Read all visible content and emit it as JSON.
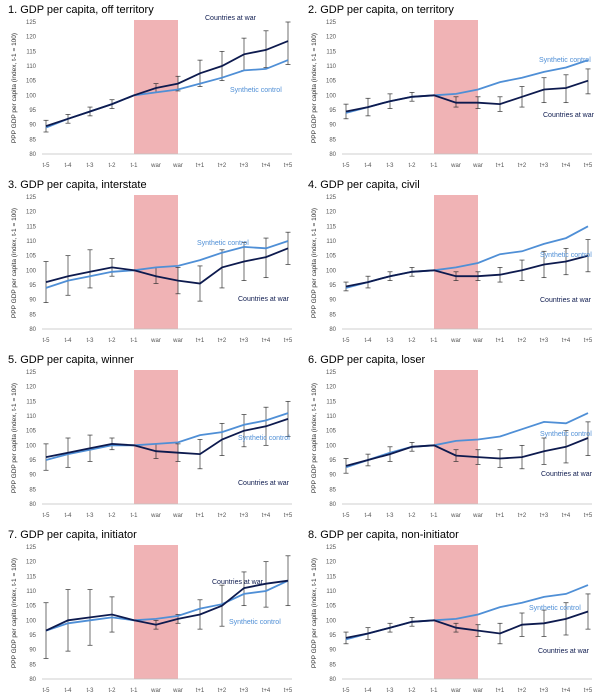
{
  "colors": {
    "war": "#0d1a4e",
    "synthetic": "#4f8fd6",
    "band": "#f0b3b5",
    "axis": "#bfbfbf"
  },
  "chart_data": [
    {
      "type": "line",
      "title": "1. GDP per capita, off territory",
      "ylabel": "PPP GDP per capita (index, t-1 = 100)",
      "categories": [
        "t-5",
        "t-4",
        "t-3",
        "t-2",
        "t-1",
        "war",
        "war",
        "t+1",
        "t+2",
        "t+3",
        "t+4",
        "t+5"
      ],
      "yticks": [
        80,
        85,
        90,
        95,
        100,
        105,
        110,
        115,
        120,
        125
      ],
      "ylim": [
        80,
        125
      ],
      "shaded": [
        "t-1",
        "war"
      ],
      "series": [
        {
          "name": "Countries at war",
          "values": [
            89.5,
            92,
            94.5,
            97,
            100,
            102.5,
            104,
            107.5,
            110,
            114,
            115.5,
            118.5
          ],
          "err_low": [
            87.5,
            90.5,
            93,
            95.5,
            100,
            101,
            101.5,
            103,
            105,
            108.5,
            109.5,
            110.5
          ],
          "err_high": [
            91.5,
            93.5,
            96,
            98.5,
            100,
            104,
            106.5,
            112,
            115,
            119.5,
            122,
            125
          ]
        },
        {
          "name": "Synthetic control",
          "values": [
            89,
            92,
            94.5,
            97,
            100,
            101,
            102,
            104,
            106,
            108.5,
            109,
            112
          ]
        }
      ],
      "labels": [
        {
          "series": "Countries at war",
          "text": "Countries at war"
        },
        {
          "series": "Synthetic control",
          "text": "Synthetic control"
        }
      ]
    },
    {
      "type": "line",
      "title": "2. GDP per capita, on territory",
      "ylabel": "PPP GDP per capita (index, t-1 = 100)",
      "categories": [
        "t-5",
        "t-4",
        "t-3",
        "t-2",
        "t-1",
        "war",
        "war",
        "t+1",
        "t+2",
        "t+3",
        "t+4",
        "t+5"
      ],
      "yticks": [
        80,
        85,
        90,
        95,
        100,
        105,
        110,
        115,
        120,
        125
      ],
      "ylim": [
        80,
        125
      ],
      "shaded": [
        "t-1",
        "war"
      ],
      "series": [
        {
          "name": "Countries at war",
          "values": [
            94.5,
            96,
            98,
            99.5,
            100,
            97.5,
            97.5,
            97,
            99.5,
            102,
            102.5,
            105
          ],
          "err_low": [
            92,
            93,
            95.5,
            98,
            100,
            96,
            95.5,
            94.5,
            96,
            97.5,
            97.5,
            100.5
          ],
          "err_high": [
            97,
            99,
            100.5,
            101,
            100,
            99.5,
            99.5,
            99.5,
            103,
            106,
            107,
            109
          ]
        },
        {
          "name": "Synthetic control",
          "values": [
            94,
            96,
            98,
            99.5,
            100,
            100.5,
            102,
            104.5,
            106,
            108,
            109.5,
            112
          ]
        }
      ],
      "labels": [
        {
          "series": "Countries at war",
          "text": "Countries at war"
        },
        {
          "series": "Synthetic control",
          "text": "Synthetic control"
        }
      ]
    },
    {
      "type": "line",
      "title": "3. GDP per capita, interstate",
      "ylabel": "PPP GDP per capita (index, t-1 = 100)",
      "categories": [
        "t-5",
        "t-4",
        "t-3",
        "t-2",
        "t-1",
        "war",
        "war",
        "t+1",
        "t+2",
        "t+3",
        "t+4",
        "t+5"
      ],
      "yticks": [
        80,
        85,
        90,
        95,
        100,
        105,
        110,
        115,
        120,
        125
      ],
      "ylim": [
        80,
        125
      ],
      "shaded": [
        "t-1",
        "war"
      ],
      "series": [
        {
          "name": "Countries at war",
          "values": [
            96,
            98,
            99.5,
            101,
            100,
            98,
            96.5,
            95.5,
            101,
            103,
            104.5,
            107.5
          ],
          "err_low": [
            89,
            91.5,
            94,
            98,
            100,
            95.5,
            92,
            89.5,
            94,
            96.5,
            97.5,
            102
          ],
          "err_high": [
            103,
            105,
            107,
            104,
            100,
            101,
            101,
            101.5,
            107,
            109.5,
            111,
            113
          ]
        },
        {
          "name": "Synthetic control",
          "values": [
            94,
            96.5,
            98,
            99.5,
            100,
            101,
            101.5,
            103.5,
            106,
            108,
            107.5,
            110
          ]
        }
      ],
      "labels": [
        {
          "series": "Countries at war",
          "text": "Countries at war"
        },
        {
          "series": "Synthetic control",
          "text": "Synthetic control"
        }
      ]
    },
    {
      "type": "line",
      "title": "4. GDP per capita, civil",
      "ylabel": "PPP GDP per capita (index, t-1 = 100)",
      "categories": [
        "t-5",
        "t-4",
        "t-3",
        "t-2",
        "t-1",
        "war",
        "war",
        "t+1",
        "t+2",
        "t+3",
        "t+4",
        "t+5"
      ],
      "yticks": [
        80,
        85,
        90,
        95,
        100,
        105,
        110,
        115,
        120,
        125
      ],
      "ylim": [
        80,
        125
      ],
      "shaded": [
        "t-1",
        "war"
      ],
      "series": [
        {
          "name": "Countries at war",
          "values": [
            94.5,
            96,
            98,
            99.5,
            100,
            98,
            98,
            98.5,
            100,
            102,
            103,
            105
          ],
          "err_low": [
            93,
            94,
            96.5,
            98,
            100,
            96.5,
            96.5,
            96,
            96.5,
            97.5,
            98.5,
            99.5
          ],
          "err_high": [
            96,
            98,
            99.5,
            101,
            100,
            99.5,
            99.5,
            101,
            103.5,
            106.5,
            107.5,
            110.5
          ]
        },
        {
          "name": "Synthetic control",
          "values": [
            94,
            96,
            98,
            99.5,
            100,
            101,
            102.5,
            105.5,
            106.5,
            109,
            111,
            115
          ]
        }
      ],
      "labels": [
        {
          "series": "Countries at war",
          "text": "Countries at war"
        },
        {
          "series": "Synthetic control",
          "text": "Synthetic control"
        }
      ]
    },
    {
      "type": "line",
      "title": "5. GDP per capita, winner",
      "ylabel": "PPP GDP per capita (index, t-1 = 100)",
      "categories": [
        "t-5",
        "t-4",
        "t-3",
        "t-2",
        "t-1",
        "war",
        "war",
        "t+1",
        "t+2",
        "t+3",
        "t+4",
        "t+5"
      ],
      "yticks": [
        80,
        85,
        90,
        95,
        100,
        105,
        110,
        115,
        120,
        125
      ],
      "ylim": [
        80,
        125
      ],
      "shaded": [
        "t-1",
        "war"
      ],
      "series": [
        {
          "name": "Countries at war",
          "values": [
            96,
            97.5,
            99,
            100.5,
            100,
            98,
            97.5,
            97,
            102,
            105,
            106.5,
            109
          ],
          "err_low": [
            91.5,
            92.5,
            94.5,
            98.5,
            100,
            95.5,
            94.5,
            92,
            96.5,
            99.5,
            100,
            103
          ],
          "err_high": [
            100.5,
            102.5,
            103.5,
            102.5,
            100,
            100.5,
            100.5,
            102,
            107.5,
            110.5,
            113,
            115
          ]
        },
        {
          "name": "Synthetic control",
          "values": [
            95,
            97,
            98.5,
            100,
            100,
            100.5,
            101,
            103.5,
            104.5,
            107,
            108.5,
            111
          ]
        }
      ],
      "labels": [
        {
          "series": "Countries at war",
          "text": "Countries at war"
        },
        {
          "series": "Synthetic control",
          "text": "Synthetic control"
        }
      ]
    },
    {
      "type": "line",
      "title": "6. GDP per capita, loser",
      "ylabel": "PPP GDP per capita (index, t-1 = 100)",
      "categories": [
        "t-5",
        "t-4",
        "t-3",
        "t-2",
        "t-1",
        "war",
        "war",
        "t+1",
        "t+2",
        "t+3",
        "t+4",
        "t+5"
      ],
      "yticks": [
        80,
        85,
        90,
        95,
        100,
        105,
        110,
        115,
        120,
        125
      ],
      "ylim": [
        80,
        125
      ],
      "shaded": [
        "t-1",
        "war"
      ],
      "series": [
        {
          "name": "Countries at war",
          "values": [
            93,
            95,
            97,
            99.5,
            100,
            96.5,
            96,
            95.5,
            96,
            98,
            99.5,
            102.5
          ],
          "err_low": [
            90.5,
            93,
            94.5,
            98,
            100,
            94.5,
            93.5,
            92.5,
            92,
            93.5,
            94,
            96.5
          ],
          "err_high": [
            95.5,
            97,
            99.5,
            101,
            100,
            98.5,
            98.5,
            98.5,
            100,
            102.5,
            105,
            108
          ]
        },
        {
          "name": "Synthetic control",
          "values": [
            92.5,
            95,
            97.5,
            99.5,
            100,
            101.5,
            102,
            103,
            105.5,
            108,
            107.5,
            111
          ]
        }
      ],
      "labels": [
        {
          "series": "Countries at war",
          "text": "Countries at war"
        },
        {
          "series": "Synthetic control",
          "text": "Synthetic control"
        }
      ]
    },
    {
      "type": "line",
      "title": "7. GDP per capita, initiator",
      "ylabel": "PPP GDP per capita (index, t-1 = 100)",
      "categories": [
        "t-5",
        "t-4",
        "t-3",
        "t-2",
        "t-1",
        "war",
        "war",
        "t+1",
        "t+2",
        "t+3",
        "t+4",
        "t+5"
      ],
      "yticks": [
        80,
        85,
        90,
        95,
        100,
        105,
        110,
        115,
        120,
        125
      ],
      "ylim": [
        80,
        125
      ],
      "shaded": [
        "t-1",
        "war"
      ],
      "series": [
        {
          "name": "Countries at war",
          "values": [
            96.5,
            100,
            101,
            102,
            100,
            98.5,
            100.5,
            102,
            105,
            111,
            112.5,
            113.5
          ],
          "err_low": [
            87,
            89.5,
            91.5,
            96,
            100,
            97,
            99,
            97,
            98,
            105,
            104.5,
            105
          ],
          "err_high": [
            106,
            110.5,
            110.5,
            108,
            100,
            100,
            102,
            107,
            112,
            116.5,
            120,
            122
          ]
        },
        {
          "name": "Synthetic control",
          "values": [
            96.5,
            99,
            100,
            101,
            100,
            100.5,
            101.5,
            104,
            105.5,
            109,
            110,
            113.5
          ]
        }
      ],
      "labels": [
        {
          "series": "Countries at war",
          "text": "Countries at war"
        },
        {
          "series": "Synthetic control",
          "text": "Synthetic control"
        }
      ]
    },
    {
      "type": "line",
      "title": "8. GDP per capita, non-initiator",
      "ylabel": "PPP GDP per capita (index, t-1 = 100)",
      "categories": [
        "t-5",
        "t-4",
        "t-3",
        "t-2",
        "t-1",
        "war",
        "war",
        "t+1",
        "t+2",
        "t+3",
        "t+4",
        "t+5"
      ],
      "yticks": [
        80,
        85,
        90,
        95,
        100,
        105,
        110,
        115,
        120,
        125
      ],
      "ylim": [
        80,
        125
      ],
      "shaded": [
        "t-1",
        "war"
      ],
      "series": [
        {
          "name": "Countries at war",
          "values": [
            94,
            95.5,
            97.5,
            99.5,
            100,
            97.5,
            96.5,
            95.5,
            98.5,
            99,
            100.5,
            103
          ],
          "err_low": [
            92,
            93.5,
            96,
            98,
            100,
            96,
            94.5,
            92,
            94.5,
            94.5,
            95,
            97
          ],
          "err_high": [
            96,
            97.5,
            99,
            101,
            100,
            99,
            98.5,
            99,
            102.5,
            103.5,
            106,
            109
          ]
        },
        {
          "name": "Synthetic control",
          "values": [
            93.5,
            95.5,
            97.5,
            99.5,
            100,
            100.5,
            102,
            104.5,
            106,
            108,
            109,
            112
          ]
        }
      ],
      "labels": [
        {
          "series": "Countries at war",
          "text": "Countries at war"
        },
        {
          "series": "Synthetic control",
          "text": "Synthetic control"
        }
      ]
    }
  ]
}
